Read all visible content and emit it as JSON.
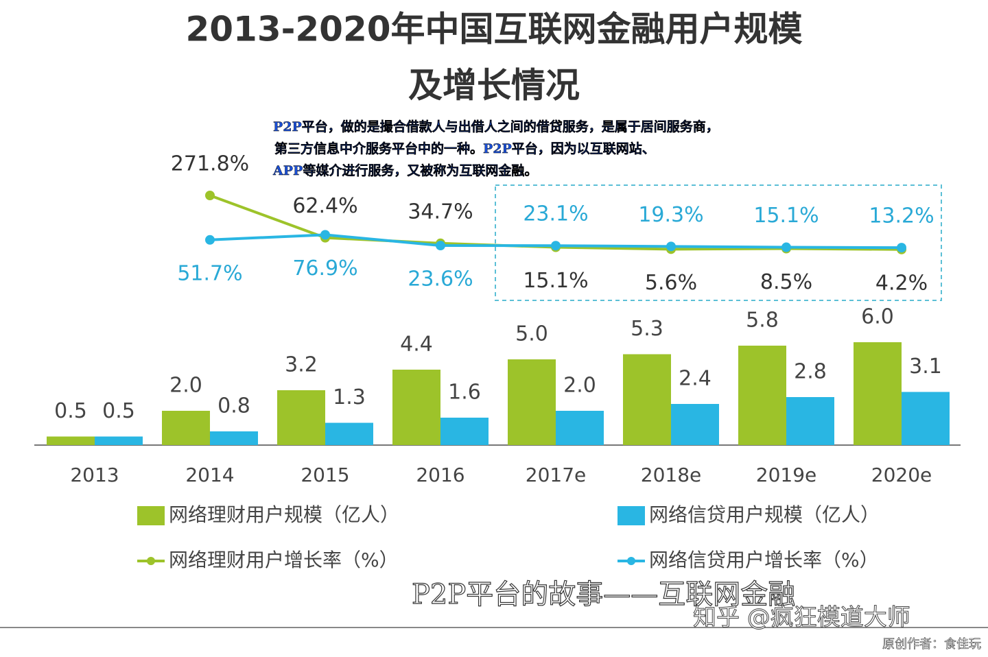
{
  "chart_data": {
    "type": "bar",
    "title": [
      "2013-2020年中国互联网金融用户规模",
      "及增长情况"
    ],
    "annotations": [
      "P2P平台，做的是撮合借款人与出借人之间的借贷服务，是属于居间服务商，",
      "第三方信息中介服务平台中的一种。P2P平台，因为以互联网站、",
      "APP等媒介进行服务，又被称为互联网金融。"
    ],
    "watermarks": [
      "P2P平台的故事——互联网金融",
      "知乎 @疯狂模道大师",
      "原创作者：食佳玩"
    ],
    "categories": [
      "2013",
      "2014",
      "2015",
      "2016",
      "2017e",
      "2018e",
      "2019e",
      "2020e"
    ],
    "series": [
      {
        "name": "网络理财用户规模（亿人）",
        "type": "bar",
        "color": "#9dc32a",
        "values": [
          0.5,
          2.0,
          3.2,
          4.4,
          5.0,
          5.3,
          5.8,
          6.0
        ],
        "value_labels": [
          "0.5",
          "2.0",
          "3.2",
          "4.4",
          "5.0",
          "5.3",
          "5.8",
          "6.0"
        ]
      },
      {
        "name": "网络信贷用户规模（亿人）",
        "type": "bar",
        "color": "#29b6e3",
        "values": [
          0.5,
          0.8,
          1.3,
          1.6,
          2.0,
          2.4,
          2.8,
          3.1
        ],
        "value_labels": [
          "0.5",
          "0.8",
          "1.3",
          "1.6",
          "2.0",
          "2.4",
          "2.8",
          "3.1"
        ]
      },
      {
        "name": "网络理财用户增长率（%）",
        "type": "line",
        "color": "#9dc32a",
        "values": [
          null,
          271.8,
          62.4,
          34.7,
          15.1,
          5.6,
          8.5,
          4.2
        ],
        "value_labels": [
          null,
          "271.8%",
          "62.4%",
          "34.7%",
          "15.1%",
          "5.6%",
          "8.5%",
          "4.2%"
        ]
      },
      {
        "name": "网络信贷用户增长率（%）",
        "type": "line",
        "color": "#29b6e3",
        "values": [
          null,
          51.7,
          76.9,
          23.6,
          23.1,
          19.3,
          15.1,
          13.2
        ],
        "value_labels": [
          null,
          "51.7%",
          "76.9%",
          "23.6%",
          "23.1%",
          "19.3%",
          "15.1%",
          "13.2%"
        ]
      }
    ]
  }
}
